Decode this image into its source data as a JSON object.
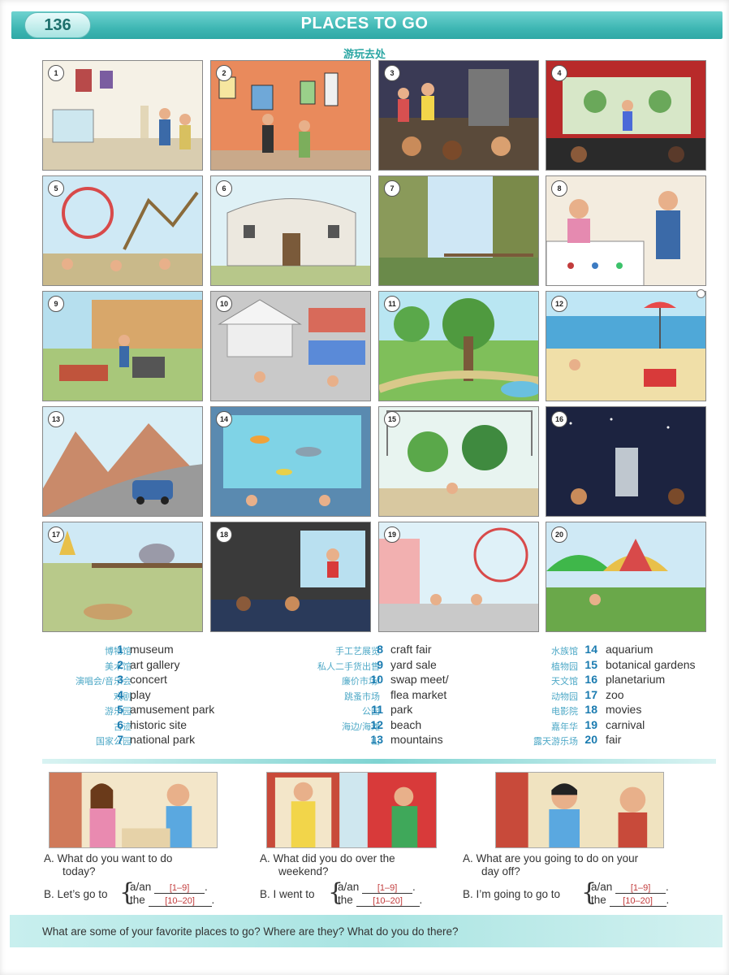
{
  "header": {
    "page_number": "136",
    "title": "PLACES TO GO",
    "subtitle_cn": "游玩去处"
  },
  "tiles": [
    "1",
    "2",
    "3",
    "4",
    "5",
    "6",
    "7",
    "8",
    "9",
    "10",
    "11",
    "12",
    "13",
    "14",
    "15",
    "16",
    "17",
    "18",
    "19",
    "20"
  ],
  "colors": {
    "header_teal": "#3fb7b4",
    "number_blue": "#1a7bb0",
    "chinese_blue": "#4fa9c7",
    "answer_red": "#c23c3c"
  },
  "vocab": [
    {
      "cn": "博物馆",
      "num": "1",
      "en": "museum"
    },
    {
      "cn": "美术馆",
      "num": "2",
      "en": "art gallery"
    },
    {
      "cn": "演唱会/音乐会",
      "num": "3",
      "en": "concert"
    },
    {
      "cn": "戏剧",
      "num": "4",
      "en": "play"
    },
    {
      "cn": "游乐园",
      "num": "5",
      "en": "amusement park"
    },
    {
      "cn": "古迹",
      "num": "6",
      "en": "historic site"
    },
    {
      "cn": "国家公园",
      "num": "7",
      "en": "national park"
    },
    {
      "cn": "手工艺展览",
      "num": "8",
      "en": "craft fair"
    },
    {
      "cn": "私人二手货出售",
      "num": "9",
      "en": "yard sale"
    },
    {
      "cn": "廉价市场/",
      "num": "10",
      "en": "swap meet/"
    },
    {
      "cn": "跳蚤市场",
      "num": "",
      "en": "flea market"
    },
    {
      "cn": "公园",
      "num": "11",
      "en": "park"
    },
    {
      "cn": "海边/海滩",
      "num": "12",
      "en": "beach"
    },
    {
      "cn": "山",
      "num": "13",
      "en": "mountains"
    },
    {
      "cn": "水族馆",
      "num": "14",
      "en": "aquarium"
    },
    {
      "cn": "植物园",
      "num": "15",
      "en": "botanical gardens"
    },
    {
      "cn": "天文馆",
      "num": "16",
      "en": "planetarium"
    },
    {
      "cn": "动物园",
      "num": "17",
      "en": "zoo"
    },
    {
      "cn": "电影院",
      "num": "18",
      "en": "movies"
    },
    {
      "cn": "嘉年华",
      "num": "19",
      "en": "carnival"
    },
    {
      "cn": "露天游乐场",
      "num": "20",
      "en": "fair"
    }
  ],
  "conversations": [
    {
      "a1": "A.  What do you want to do",
      "a2": "today?",
      "b_prefix": "B.  Let’s go to",
      "opt1": "a/an",
      "opt2": "the",
      "fill1": "[1–9]",
      "fill2": "[10–20]"
    },
    {
      "a1": "A.  What did you do over the",
      "a2": "weekend?",
      "b_prefix": "B.  I went to",
      "opt1": "a/an",
      "opt2": "the",
      "fill1": "[1–9]",
      "fill2": "[10–20]"
    },
    {
      "a1": "A.  What are you going to do on your",
      "a2": "day off?",
      "b_prefix": "B.  I’m going to go to",
      "opt1": "a/an",
      "opt2": "the",
      "fill1": "[1–9]",
      "fill2": "[10–20]"
    }
  ],
  "footer": {
    "question": "What are some of your favorite places to go?  Where are they?  What do you do there?"
  }
}
